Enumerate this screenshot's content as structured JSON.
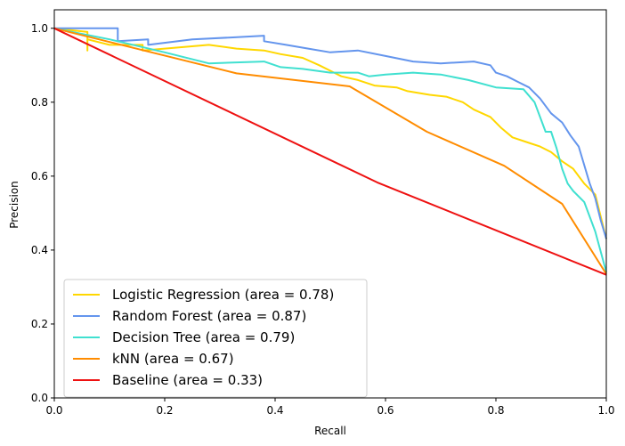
{
  "chart_data": {
    "type": "line",
    "title": "",
    "xlabel": "Recall",
    "ylabel": "Precision",
    "xlim": [
      0.0,
      1.0
    ],
    "ylim": [
      0.0,
      1.05
    ],
    "xticks": [
      "0.0",
      "0.2",
      "0.4",
      "0.6",
      "0.8",
      "1.0"
    ],
    "yticks": [
      "0.0",
      "0.2",
      "0.4",
      "0.6",
      "0.8",
      "1.0"
    ],
    "grid": false,
    "legend_position": "lower-left",
    "series": [
      {
        "name": "Logistic Regression (area = 0.78)",
        "color": "#FFD700",
        "x": [
          0.0,
          0.06,
          0.06,
          0.06,
          0.1,
          0.16,
          0.16,
          0.2,
          0.28,
          0.33,
          0.38,
          0.41,
          0.45,
          0.48,
          0.5,
          0.52,
          0.55,
          0.58,
          0.62,
          0.64,
          0.68,
          0.71,
          0.74,
          0.76,
          0.79,
          0.81,
          0.83,
          0.86,
          0.88,
          0.9,
          0.92,
          0.94,
          0.96,
          0.98,
          1.0
        ],
        "y": [
          1.0,
          0.99,
          0.94,
          0.97,
          0.955,
          0.955,
          0.94,
          0.945,
          0.955,
          0.945,
          0.94,
          0.93,
          0.92,
          0.9,
          0.885,
          0.87,
          0.86,
          0.845,
          0.84,
          0.83,
          0.82,
          0.815,
          0.8,
          0.78,
          0.76,
          0.73,
          0.705,
          0.69,
          0.68,
          0.665,
          0.64,
          0.62,
          0.58,
          0.55,
          0.43
        ]
      },
      {
        "name": "Random Forest (area = 0.87)",
        "color": "#6495ED",
        "x": [
          0.0,
          0.115,
          0.115,
          0.17,
          0.17,
          0.25,
          0.32,
          0.38,
          0.38,
          0.42,
          0.46,
          0.5,
          0.55,
          0.6,
          0.65,
          0.7,
          0.76,
          0.79,
          0.8,
          0.82,
          0.84,
          0.86,
          0.88,
          0.9,
          0.92,
          0.935,
          0.95,
          0.96,
          0.97,
          0.98,
          0.99,
          1.0
        ],
        "y": [
          1.0,
          1.0,
          0.965,
          0.97,
          0.955,
          0.97,
          0.975,
          0.98,
          0.965,
          0.955,
          0.945,
          0.935,
          0.94,
          0.925,
          0.91,
          0.905,
          0.91,
          0.9,
          0.88,
          0.87,
          0.855,
          0.84,
          0.81,
          0.77,
          0.745,
          0.71,
          0.68,
          0.63,
          0.58,
          0.54,
          0.48,
          0.43
        ]
      },
      {
        "name": "Decision Tree (area = 0.79)",
        "color": "#40E0D0",
        "x": [
          0.0,
          0.1,
          0.2,
          0.28,
          0.38,
          0.41,
          0.45,
          0.5,
          0.55,
          0.57,
          0.6,
          0.65,
          0.7,
          0.75,
          0.8,
          0.85,
          0.87,
          0.88,
          0.89,
          0.9,
          0.91,
          0.92,
          0.93,
          0.94,
          0.96,
          0.98,
          1.0
        ],
        "y": [
          1.0,
          0.97,
          0.935,
          0.905,
          0.91,
          0.895,
          0.89,
          0.88,
          0.88,
          0.87,
          0.875,
          0.88,
          0.875,
          0.86,
          0.84,
          0.835,
          0.8,
          0.76,
          0.72,
          0.72,
          0.675,
          0.62,
          0.58,
          0.56,
          0.53,
          0.45,
          0.34
        ]
      },
      {
        "name": "kNN (area = 0.67)",
        "color": "#FF8C00",
        "x": [
          0.0,
          0.33,
          0.535,
          0.675,
          0.815,
          0.92,
          1.0
        ],
        "y": [
          1.0,
          0.878,
          0.843,
          0.72,
          0.628,
          0.525,
          0.335
        ]
      },
      {
        "name": "Baseline (area = 0.33)",
        "color": "#EE1111",
        "x": [
          0.0,
          0.585,
          1.0
        ],
        "y": [
          1.0,
          0.583,
          0.333
        ]
      }
    ]
  }
}
